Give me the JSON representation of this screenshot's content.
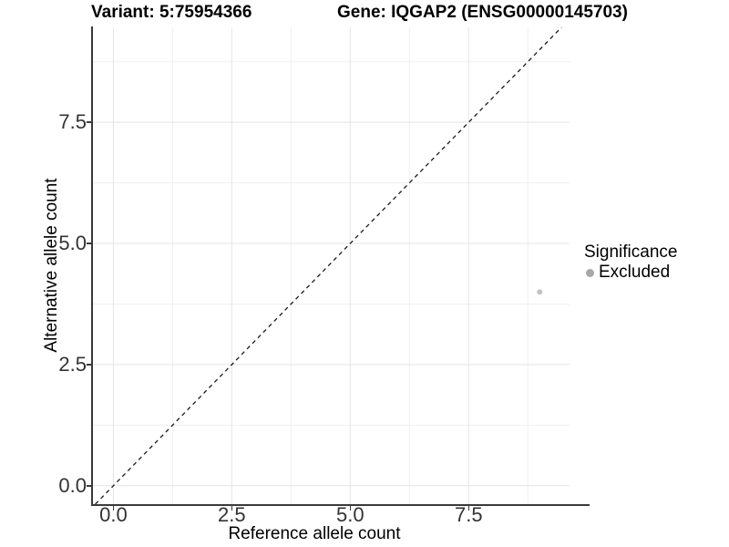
{
  "chart_data": {
    "type": "scatter",
    "title_left": "Variant: 5:75954366",
    "title_right": "Gene: IQGAP2 (ENSG00000145703)",
    "xlabel": "Reference allele count",
    "ylabel": "Alternative allele count",
    "xlim": [
      -0.45,
      9.63
    ],
    "ylim": [
      -0.38,
      9.46
    ],
    "x_ticks": [
      0.0,
      2.5,
      5.0,
      7.5
    ],
    "y_ticks": [
      0.0,
      2.5,
      5.0,
      7.5
    ],
    "x_tick_labels": [
      "0.0",
      "2.5",
      "5.0",
      "7.5"
    ],
    "y_tick_labels": [
      "0.0",
      "2.5",
      "5.0",
      "7.5"
    ],
    "x_minor_ticks": [
      1.25,
      3.75,
      6.25,
      8.75
    ],
    "y_minor_ticks": [
      1.25,
      3.75,
      6.25,
      8.75
    ],
    "grid": true,
    "grid_major_color": "#e4e4e4",
    "grid_minor_color": "#efefef",
    "background_color": "#ffffff",
    "axis_line_color": "#3a3a3a",
    "series": [
      {
        "name": "Excluded",
        "color": "#c3c3c3",
        "marker": "circle",
        "marker_radius_px": 3,
        "points": [
          {
            "x": 9,
            "y": 4
          }
        ]
      }
    ],
    "reference_line": {
      "equation": "y = x",
      "style": "dashed",
      "color": "#1a1a1a"
    },
    "legend": {
      "title": "Significance",
      "position": "right",
      "entries": [
        {
          "label": "Excluded",
          "color": "#a8a8a8",
          "marker": "circle"
        }
      ]
    }
  }
}
